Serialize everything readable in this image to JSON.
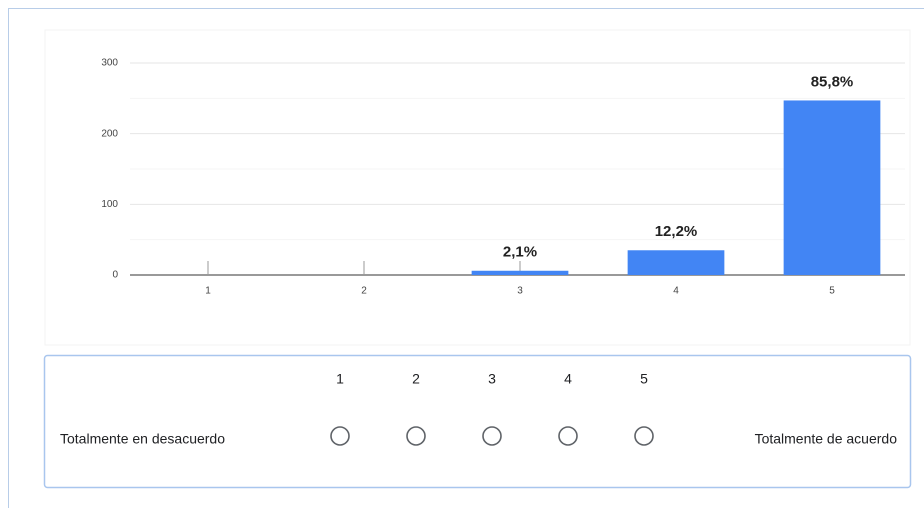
{
  "chart_data": {
    "type": "bar",
    "categories": [
      "1",
      "2",
      "3",
      "4",
      "5"
    ],
    "values": [
      0,
      0,
      6,
      35,
      247
    ],
    "value_labels": [
      null,
      null,
      "2,1%",
      "12,2%",
      "85,8%"
    ],
    "color": "#4285f4",
    "ylim": [
      0,
      300
    ],
    "yticks": [
      0,
      100,
      200,
      300
    ],
    "minor_yticks": [
      50,
      150,
      250
    ],
    "grid": true
  },
  "scale": {
    "numbers": [
      "1",
      "2",
      "3",
      "4",
      "5"
    ],
    "low_label": "Totalmente en desacuerdo",
    "high_label": "Totalmente de acuerdo"
  }
}
